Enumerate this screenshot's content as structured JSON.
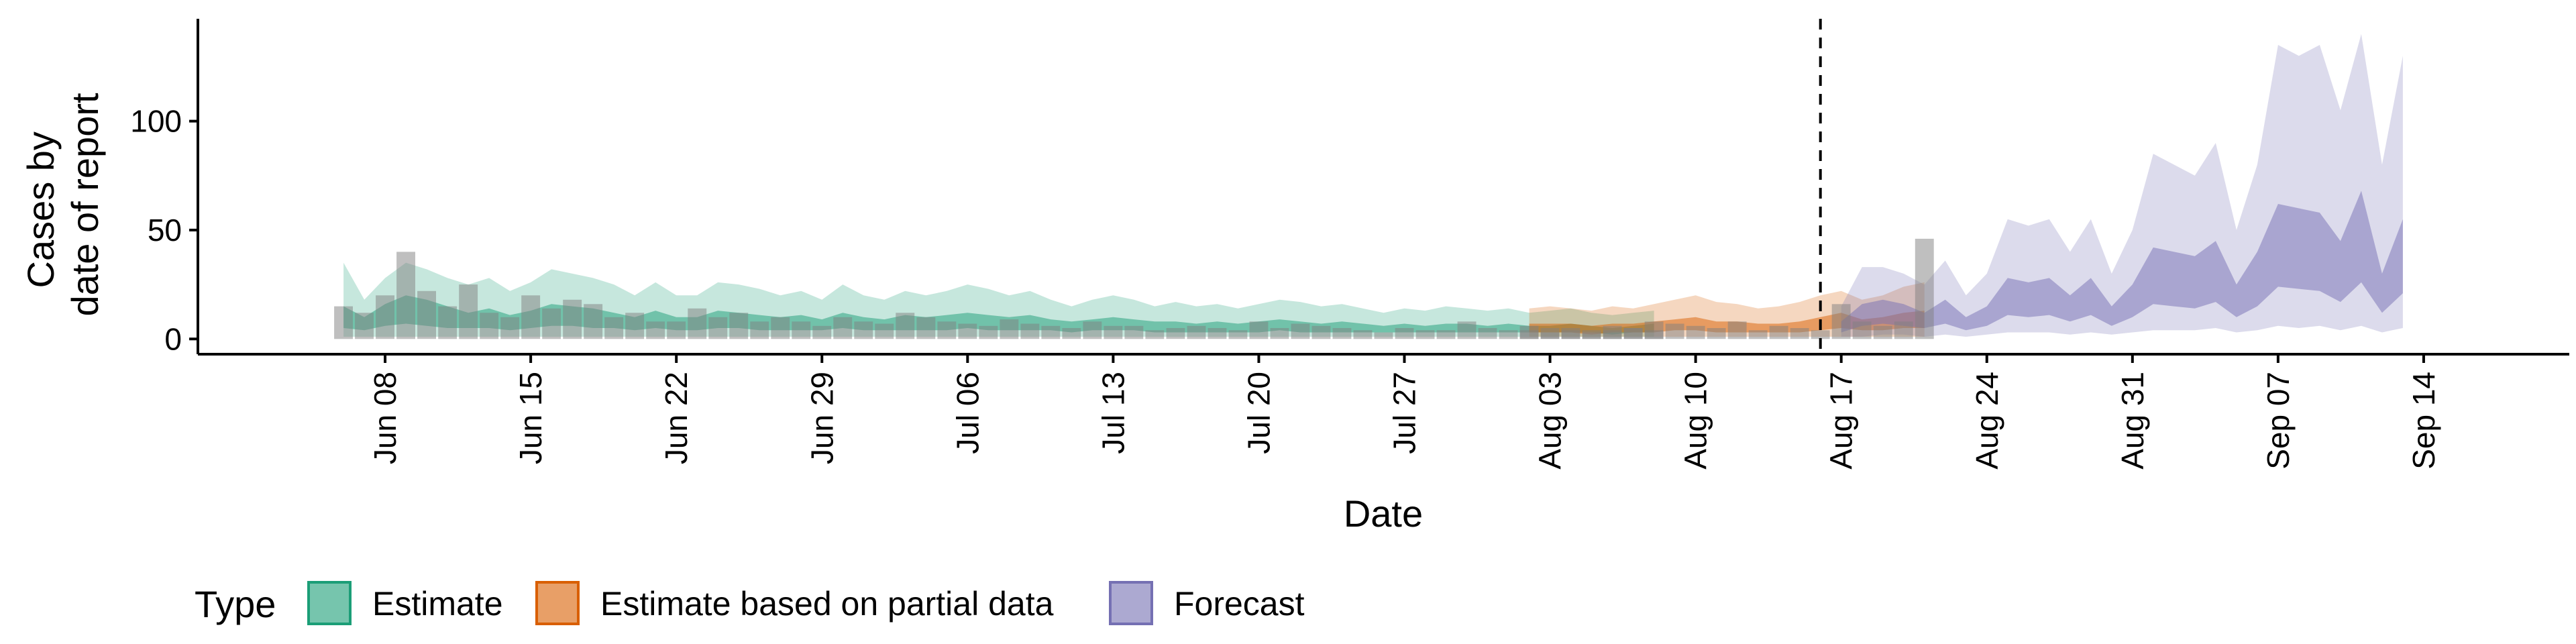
{
  "chart_data": {
    "type": "area",
    "xlabel": "Date",
    "ylabel_lines": [
      "Cases by",
      "date of report"
    ],
    "y_ticks": [
      0,
      50,
      100
    ],
    "ylim": [
      -7,
      147
    ],
    "x_tick_labels": [
      "Jun 08",
      "Jun 15",
      "Jun 22",
      "Jun 29",
      "Jul 06",
      "Jul 13",
      "Jul 20",
      "Jul 27",
      "Aug 03",
      "Aug 10",
      "Aug 17",
      "Aug 24",
      "Aug 31",
      "Sep 07",
      "Sep 14"
    ],
    "x_tick_dates": [
      "2020-06-08",
      "2020-06-15",
      "2020-06-22",
      "2020-06-29",
      "2020-07-06",
      "2020-07-13",
      "2020-07-20",
      "2020-07-27",
      "2020-08-03",
      "2020-08-10",
      "2020-08-17",
      "2020-08-24",
      "2020-08-31",
      "2020-09-07",
      "2020-09-14"
    ],
    "x_range": [
      "2020-05-30",
      "2020-09-21"
    ],
    "grid": false,
    "legend_position": "bottom-left",
    "legend_title": "Type",
    "vline_date": "2020-08-16",
    "colors": {
      "Estimate": "#1b9e77",
      "Estimate based on partial data": "#d95f02",
      "Forecast": "#7570b3",
      "observed_bars": "#808080"
    },
    "series": [
      {
        "name": "Estimate",
        "start_date": "2020-06-06",
        "outer_upper": [
          35,
          18,
          28,
          35,
          32,
          28,
          25,
          28,
          22,
          26,
          32,
          30,
          28,
          25,
          20,
          26,
          20,
          20,
          26,
          25,
          23,
          20,
          22,
          18,
          25,
          20,
          18,
          22,
          20,
          22,
          25,
          23,
          20,
          22,
          18,
          15,
          18,
          20,
          18,
          15,
          17,
          15,
          16,
          14,
          16,
          18,
          17,
          15,
          16,
          14,
          12,
          14,
          13,
          15,
          14,
          13,
          14,
          12,
          13,
          14,
          12,
          11,
          12,
          13
        ],
        "outer_lower": [
          1,
          1,
          1,
          1,
          1,
          1,
          1,
          1,
          1,
          1,
          1,
          1,
          1,
          1,
          1,
          1,
          1,
          1,
          1,
          1,
          1,
          1,
          1,
          1,
          1,
          1,
          1,
          1,
          1,
          1,
          1,
          1,
          1,
          1,
          1,
          1,
          1,
          1,
          1,
          1,
          1,
          1,
          1,
          1,
          1,
          1,
          1,
          1,
          1,
          1,
          1,
          1,
          1,
          1,
          1,
          1,
          1,
          1,
          1,
          1,
          1,
          1,
          1,
          1
        ],
        "inner_upper": [
          15,
          10,
          16,
          20,
          18,
          15,
          12,
          14,
          11,
          13,
          16,
          15,
          14,
          12,
          10,
          13,
          10,
          10,
          13,
          12,
          11,
          10,
          11,
          9,
          12,
          10,
          9,
          11,
          10,
          11,
          12,
          11,
          10,
          11,
          9,
          8,
          9,
          10,
          9,
          8,
          8,
          7,
          8,
          7,
          8,
          9,
          8,
          7,
          8,
          7,
          6,
          7,
          6,
          7,
          7,
          6,
          7,
          6,
          6,
          7,
          6,
          5,
          6,
          7
        ],
        "inner_lower": [
          5,
          4,
          6,
          7,
          6,
          5,
          5,
          5,
          4,
          5,
          6,
          6,
          5,
          5,
          4,
          5,
          4,
          4,
          5,
          5,
          4,
          4,
          4,
          4,
          5,
          4,
          4,
          4,
          4,
          4,
          5,
          4,
          4,
          4,
          4,
          3,
          4,
          4,
          4,
          3,
          3,
          3,
          3,
          3,
          3,
          4,
          3,
          3,
          3,
          3,
          3,
          3,
          3,
          3,
          3,
          3,
          3,
          3,
          3,
          3,
          3,
          2,
          3,
          3
        ],
        "bars": [
          15,
          12,
          20,
          40,
          22,
          15,
          25,
          12,
          10,
          20,
          14,
          18,
          16,
          10,
          12,
          8,
          8,
          14,
          10,
          12,
          8,
          10,
          8,
          6,
          10,
          8,
          7,
          12,
          10,
          8,
          7,
          6,
          9,
          7,
          6,
          5,
          8,
          6,
          6,
          4,
          5,
          6,
          5,
          4,
          8,
          5,
          7,
          6,
          5,
          4,
          3,
          5,
          4,
          4,
          8,
          5,
          4,
          6,
          3,
          4,
          3,
          4,
          5,
          8
        ]
      },
      {
        "name": "Estimate based on partial data",
        "start_date": "2020-08-02",
        "outer_upper": [
          14,
          15,
          14,
          13,
          15,
          14,
          16,
          18,
          20,
          17,
          16,
          14,
          15,
          17,
          20,
          22,
          18,
          20,
          24,
          26
        ],
        "outer_lower": [
          1,
          1,
          1,
          1,
          1,
          1,
          1,
          1,
          1,
          1,
          1,
          1,
          1,
          1,
          1,
          1,
          1,
          1,
          1,
          1
        ],
        "inner_upper": [
          7,
          7,
          7,
          6,
          7,
          7,
          8,
          9,
          10,
          8,
          8,
          7,
          7,
          8,
          10,
          12,
          9,
          10,
          12,
          13
        ],
        "inner_lower": [
          3,
          3,
          3,
          2,
          3,
          3,
          3,
          4,
          4,
          3,
          3,
          3,
          3,
          3,
          4,
          5,
          4,
          4,
          5,
          5
        ],
        "bars": [
          4,
          5,
          5,
          4,
          6,
          5,
          4,
          7,
          6,
          5,
          8,
          4,
          6,
          5,
          4,
          16,
          8,
          6,
          8,
          46
        ]
      },
      {
        "name": "Forecast",
        "start_date": "2020-08-17",
        "outer_upper": [
          15,
          33,
          33,
          30,
          25,
          36,
          20,
          30,
          55,
          52,
          55,
          40,
          55,
          30,
          50,
          85,
          80,
          75,
          90,
          50,
          80,
          135,
          130,
          135,
          105,
          140,
          80,
          130
        ],
        "outer_lower": [
          1,
          1,
          2,
          2,
          1,
          2,
          1,
          2,
          3,
          3,
          3,
          2,
          3,
          2,
          3,
          4,
          4,
          4,
          5,
          3,
          4,
          6,
          5,
          6,
          4,
          6,
          3,
          5
        ],
        "inner_upper": [
          8,
          16,
          18,
          16,
          12,
          18,
          10,
          15,
          28,
          26,
          28,
          20,
          28,
          15,
          25,
          42,
          40,
          38,
          45,
          25,
          40,
          62,
          60,
          58,
          45,
          68,
          30,
          55
        ],
        "inner_lower": [
          3,
          6,
          7,
          6,
          5,
          7,
          4,
          6,
          11,
          10,
          11,
          8,
          11,
          6,
          10,
          16,
          15,
          14,
          17,
          10,
          15,
          24,
          23,
          22,
          17,
          26,
          12,
          21
        ]
      }
    ]
  },
  "legend": {
    "title": "Type",
    "items": [
      {
        "label": "Estimate",
        "color": "#1b9e77"
      },
      {
        "label": "Estimate based on partial data",
        "color": "#d95f02"
      },
      {
        "label": "Forecast",
        "color": "#7570b3"
      }
    ]
  }
}
